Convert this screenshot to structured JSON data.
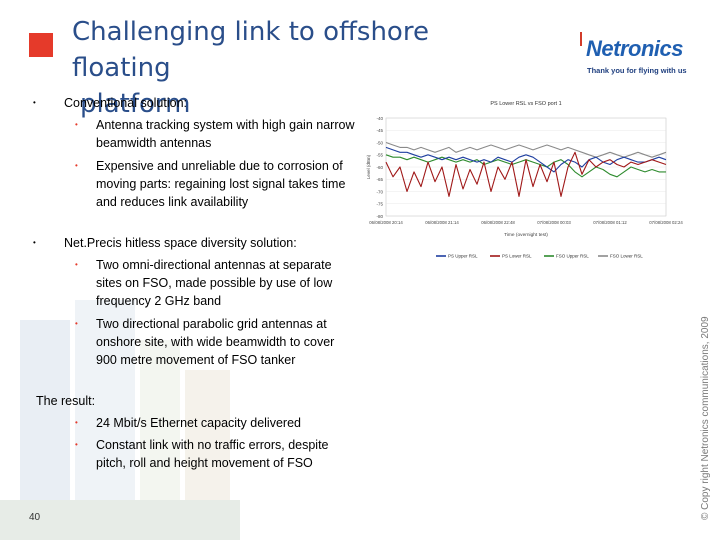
{
  "slide": {
    "title_line1": "Challenging link to offshore floating",
    "title_line2": "platform",
    "page_number": "40",
    "copyright": "© Copy right Netronics communications, 2009"
  },
  "logo": {
    "name": "Netronics",
    "tagline": "Thank you for flying with us"
  },
  "content": {
    "section1_heading": "Conventional solution:",
    "section1_bullets": [
      "Antenna tracking system with high gain narrow beamwidth antennas",
      "Expensive and unreliable due to corrosion of moving parts: regaining lost signal takes time and reduces link availability"
    ],
    "section2_heading": "Net.Precis hitless space diversity solution:",
    "section2_bullets": [
      "Two omni-directional antennas at separate sites on FSO, made possible by use of low frequency 2 GHz band",
      "Two directional parabolic grid antennas at onshore site, with wide beamwidth to cover 900 metre movement of FSO tanker"
    ],
    "result_heading": "The result:",
    "result_bullets": [
      "24 Mbit/s Ethernet capacity delivered",
      "Constant link with no traffic errors, despite pitch, roll and height movement of FSO"
    ]
  },
  "chart_data": {
    "type": "line",
    "title": "PS Lower RSL vs FSO port 1",
    "ylabel": "Level (dBm)",
    "xlabel": "Time (overnight test)",
    "ylim": [
      -80,
      -40
    ],
    "y_ticks": [
      -40,
      -45,
      -50,
      -55,
      -60,
      -65,
      -70,
      -75,
      -80
    ],
    "x_tick_labels": [
      "06/08/2008 20:14",
      "06/08/2008 21:14",
      "06/08/2008 22:48",
      "07/08/2008 00:03",
      "07/08/2008 01:12",
      "07/08/2008 02:24"
    ],
    "x": [
      0,
      1,
      2,
      3,
      4,
      5,
      6,
      7,
      8,
      9,
      10,
      11,
      12,
      13,
      14,
      15,
      16,
      17,
      18,
      19,
      20,
      21,
      22,
      23,
      24,
      25,
      26,
      27,
      28,
      29,
      30,
      31,
      32,
      33,
      34,
      35,
      36,
      37,
      38,
      39,
      40
    ],
    "series": [
      {
        "name": "PS Upper RSL",
        "color": "#1f3fa0",
        "values": [
          -52,
          -53,
          -54,
          -54,
          -55,
          -56,
          -55,
          -56,
          -57,
          -56,
          -57,
          -56,
          -57,
          -58,
          -57,
          -58,
          -56,
          -57,
          -58,
          -56,
          -55,
          -56,
          -58,
          -60,
          -62,
          -59,
          -57,
          -58,
          -60,
          -57,
          -56,
          -58,
          -59,
          -57,
          -56,
          -57,
          -58,
          -58,
          -57,
          -56,
          -57
        ]
      },
      {
        "name": "PS Lower RSL",
        "color": "#a01818",
        "values": [
          -58,
          -64,
          -60,
          -70,
          -62,
          -68,
          -58,
          -66,
          -60,
          -72,
          -59,
          -69,
          -61,
          -67,
          -58,
          -70,
          -60,
          -65,
          -58,
          -72,
          -57,
          -68,
          -59,
          -66,
          -58,
          -72,
          -60,
          -54,
          -63,
          -57,
          -60,
          -58,
          -57,
          -59,
          -60,
          -58,
          -59,
          -58,
          -57,
          -58,
          -59
        ]
      },
      {
        "name": "FSO Upper RSL",
        "color": "#2e8b2e",
        "values": [
          -55,
          -56,
          -56,
          -57,
          -56,
          -57,
          -58,
          -57,
          -56,
          -57,
          -58,
          -57,
          -58,
          -57,
          -59,
          -58,
          -57,
          -58,
          -59,
          -58,
          -57,
          -58,
          -59,
          -60,
          -58,
          -57,
          -59,
          -62,
          -64,
          -62,
          -60,
          -61,
          -63,
          -64,
          -62,
          -60,
          -61,
          -62,
          -61,
          -62,
          -62
        ]
      },
      {
        "name": "FSO Lower RSL",
        "color": "#8a8a8a",
        "values": [
          -50,
          -51,
          -52,
          -52,
          -53,
          -52,
          -53,
          -54,
          -53,
          -52,
          -54,
          -53,
          -52,
          -53,
          -52,
          -51,
          -52,
          -53,
          -52,
          -51,
          -52,
          -53,
          -52,
          -51,
          -52,
          -53,
          -52,
          -53,
          -54,
          -55,
          -56,
          -55,
          -54,
          -55,
          -56,
          -55,
          -54,
          -55,
          -56,
          -55,
          -54
        ]
      }
    ]
  },
  "colors": {
    "title": "#2a4e8a",
    "accent_red": "#e53a2a",
    "logo_blue": "#1f5fb1"
  }
}
